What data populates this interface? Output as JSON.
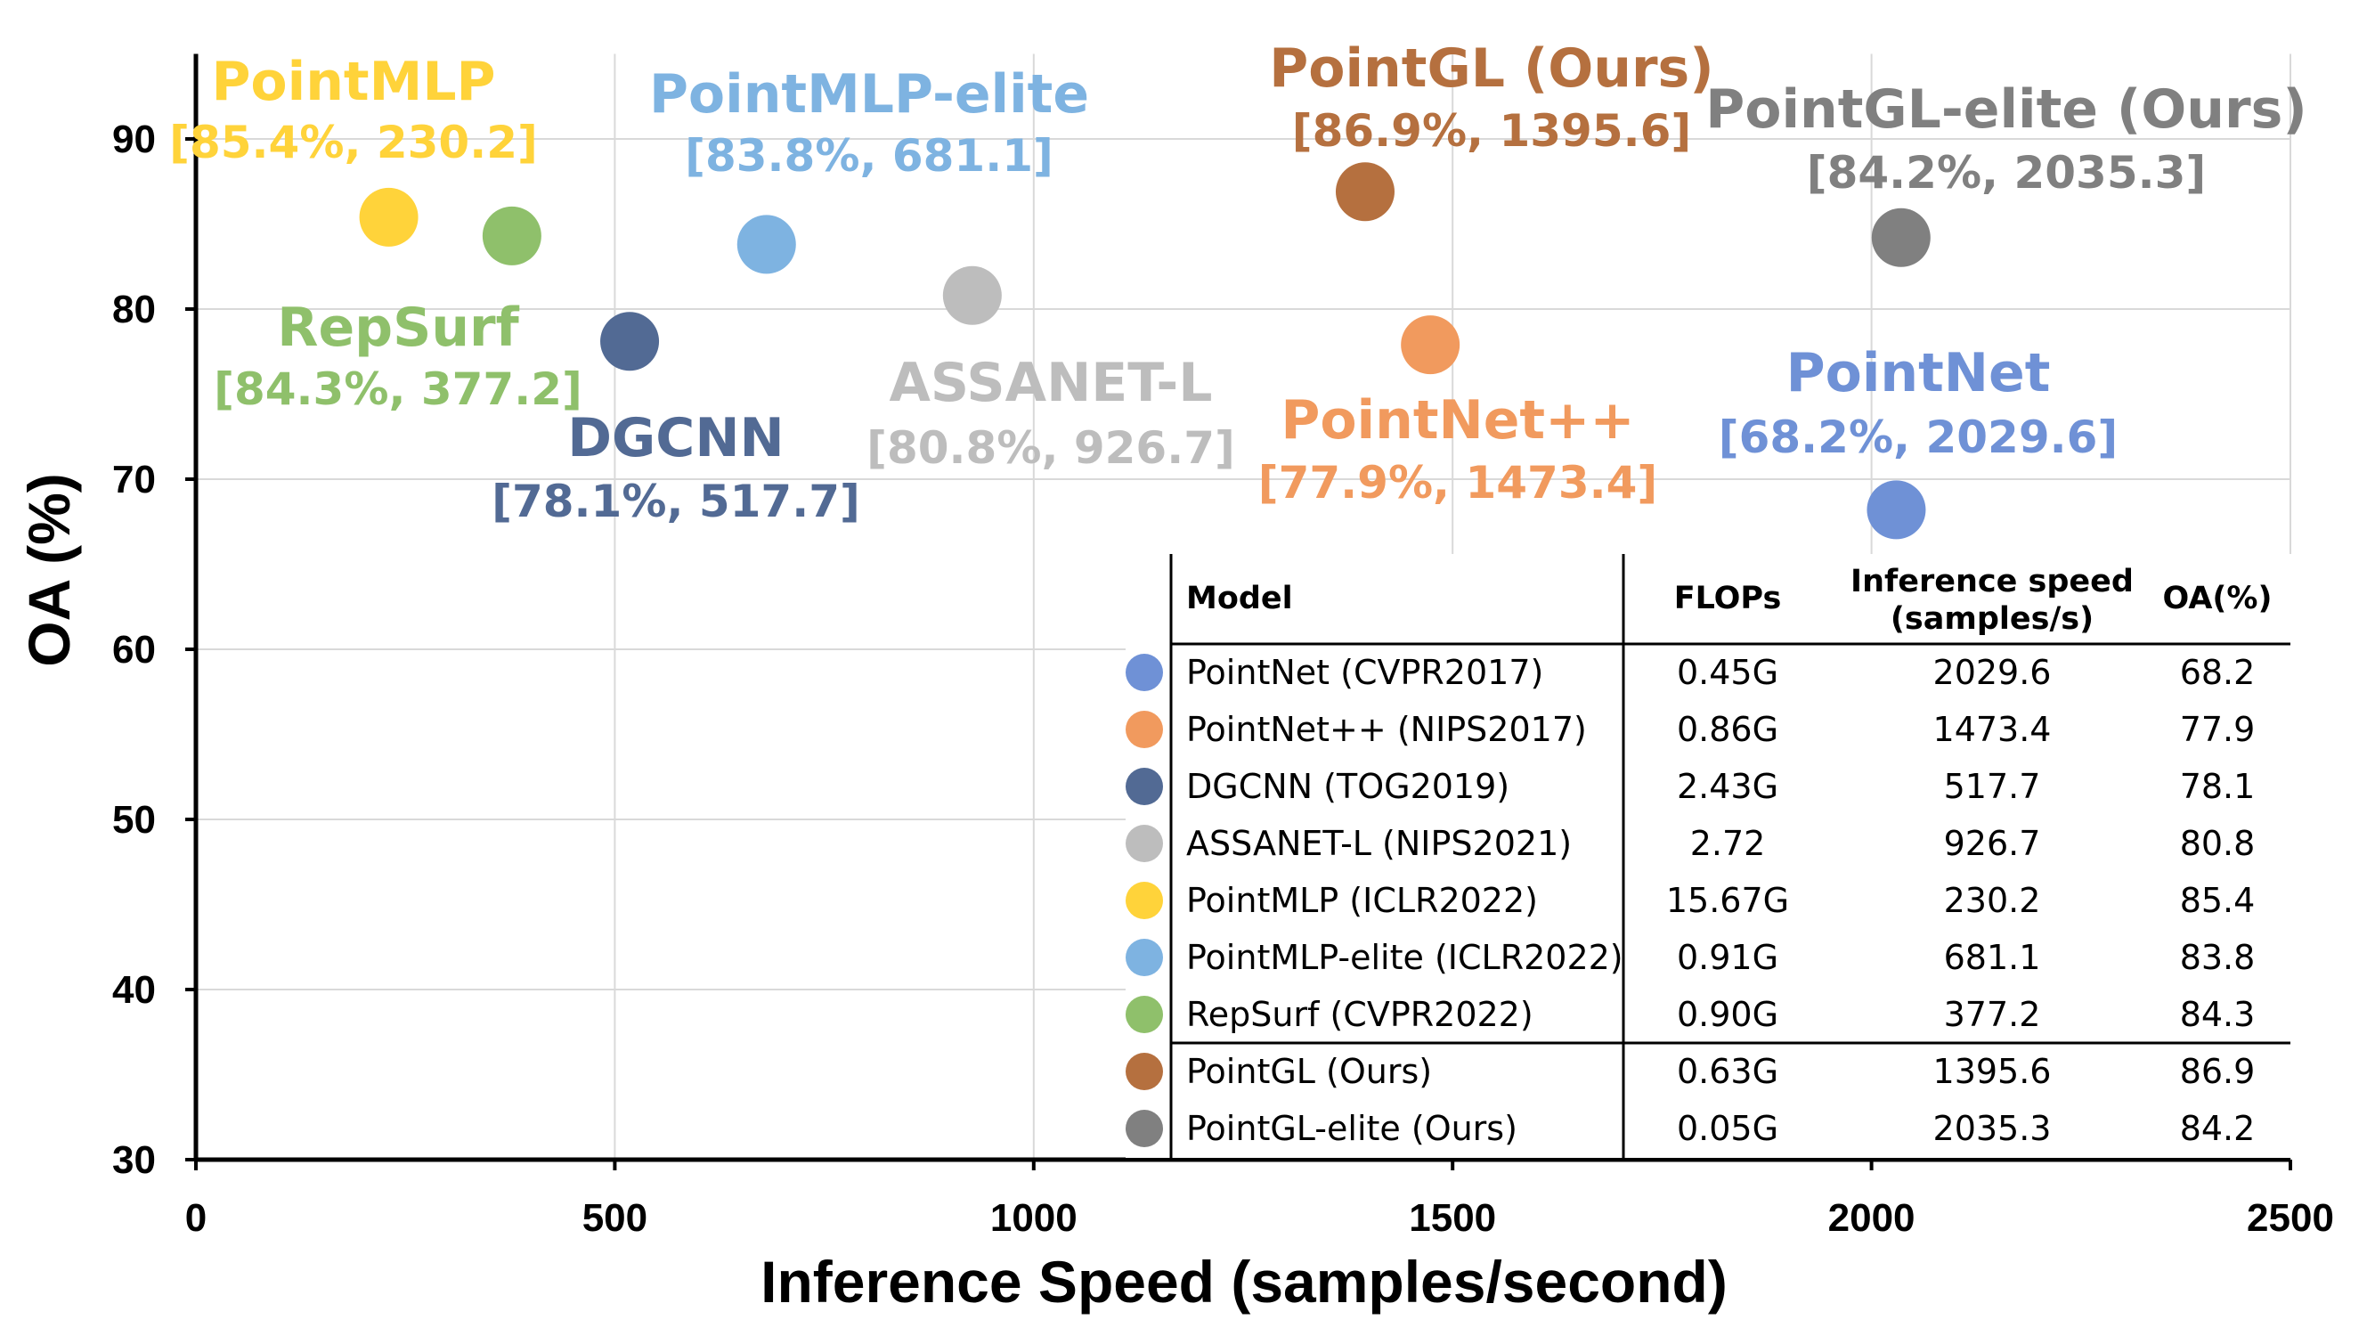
{
  "chart_data": {
    "type": "scatter",
    "xlabel": "Inference Speed (samples/second)",
    "ylabel": "OA (%)",
    "xlim": [
      0,
      2500
    ],
    "ylim": [
      30,
      95
    ],
    "x_ticks": [
      "0",
      "500",
      "1000",
      "1500",
      "2000",
      "2500"
    ],
    "y_ticks": [
      "30",
      "40",
      "50",
      "60",
      "70",
      "80",
      "90"
    ],
    "grid": true,
    "points": [
      {
        "name": "PointMLP",
        "x": 230.2,
        "y": 85.4,
        "label": "[85.4%, 230.2]",
        "color": "#FFD33A"
      },
      {
        "name": "RepSurf",
        "x": 377.2,
        "y": 84.3,
        "label": "[84.3%, 377.2]",
        "color": "#8FC06B"
      },
      {
        "name": "DGCNN",
        "x": 517.7,
        "y": 78.1,
        "label": "[78.1%, 517.7]",
        "color": "#526A94"
      },
      {
        "name": "PointMLP-elite",
        "x": 681.1,
        "y": 83.8,
        "label": "[83.8%, 681.1]",
        "color": "#7EB3E1"
      },
      {
        "name": "ASSANET-L",
        "x": 926.7,
        "y": 80.8,
        "label": "[80.8%, 926.7]",
        "color": "#BDBDBD"
      },
      {
        "name": "PointGL (Ours)",
        "x": 1395.6,
        "y": 86.9,
        "label": "[86.9%, 1395.6]",
        "color": "#B5703F"
      },
      {
        "name": "PointNet++",
        "x": 1473.4,
        "y": 77.9,
        "label": "[77.9%, 1473.4]",
        "color": "#F19A5E"
      },
      {
        "name": "PointNet",
        "x": 2029.6,
        "y": 68.2,
        "label": "[68.2%, 2029.6]",
        "color": "#6F91D6"
      },
      {
        "name": "PointGL-elite (Ours)",
        "x": 2035.3,
        "y": 84.2,
        "label": "[84.2%, 2035.3]",
        "color": "#808080"
      }
    ],
    "table": {
      "headers": [
        "Model",
        "FLOPs",
        "Inference speed (samples/s)",
        "OA(%)"
      ],
      "rows": [
        {
          "model": "PointNet (CVPR2017)",
          "flops": "0.45G",
          "speed": "2029.6",
          "oa": "68.2",
          "color": "#6F91D6"
        },
        {
          "model": "PointNet++ (NIPS2017)",
          "flops": "0.86G",
          "speed": "1473.4",
          "oa": "77.9",
          "color": "#F19A5E"
        },
        {
          "model": "DGCNN (TOG2019)",
          "flops": "2.43G",
          "speed": "517.7",
          "oa": "78.1",
          "color": "#526A94"
        },
        {
          "model": "ASSANET-L  (NIPS2021)",
          "flops": "2.72",
          "speed": "926.7",
          "oa": "80.8",
          "color": "#BDBDBD"
        },
        {
          "model": "PointMLP (ICLR2022)",
          "flops": "15.67G",
          "speed": "230.2",
          "oa": "85.4",
          "color": "#FFD33A"
        },
        {
          "model": "PointMLP-elite (ICLR2022)",
          "flops": "0.91G",
          "speed": "681.1",
          "oa": "83.8",
          "color": "#7EB3E1"
        },
        {
          "model": "RepSurf (CVPR2022)",
          "flops": "0.90G",
          "speed": "377.2",
          "oa": "84.3",
          "color": "#8FC06B"
        },
        {
          "model": "PointGL (Ours)",
          "flops": "0.63G",
          "speed": "1395.6",
          "oa": "86.9",
          "color": "#B5703F"
        },
        {
          "model": "PointGL-elite (Ours)",
          "flops": "0.05G",
          "speed": "2035.3",
          "oa": "84.2",
          "color": "#808080"
        }
      ]
    }
  }
}
